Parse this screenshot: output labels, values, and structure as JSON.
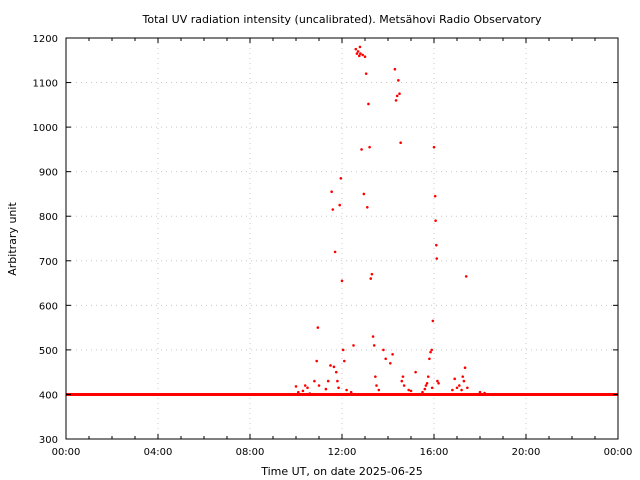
{
  "chart_data": {
    "type": "scatter",
    "title": "Total UV radiation intensity (uncalibrated). Metsähovi Radio Observatory",
    "xlabel": "Time UT, on date 2025-06-25",
    "ylabel": "Arbitrary unit",
    "xlim": [
      0,
      24
    ],
    "ylim": [
      300,
      1200
    ],
    "x_ticks": [
      0,
      4,
      8,
      12,
      16,
      20,
      24
    ],
    "x_tick_labels": [
      "00:00",
      "04:00",
      "08:00",
      "12:00",
      "16:00",
      "20:00",
      "00:00"
    ],
    "y_ticks": [
      300,
      400,
      500,
      600,
      700,
      800,
      900,
      1000,
      1100,
      1200
    ],
    "y_tick_labels": [
      "300",
      "400",
      "500",
      "600",
      "700",
      "800",
      "900",
      "1000",
      "1100",
      "1200"
    ],
    "grid": true,
    "point_color": "#ff0000",
    "baseline": {
      "x_range": [
        0,
        24
      ],
      "value": 400
    },
    "points": [
      [
        10.0,
        418
      ],
      [
        10.1,
        405
      ],
      [
        10.3,
        408
      ],
      [
        10.4,
        420
      ],
      [
        10.5,
        415
      ],
      [
        10.6,
        402
      ],
      [
        10.8,
        430
      ],
      [
        10.9,
        475
      ],
      [
        10.95,
        550
      ],
      [
        11.0,
        420
      ],
      [
        11.3,
        412
      ],
      [
        11.4,
        430
      ],
      [
        11.5,
        465
      ],
      [
        11.55,
        855
      ],
      [
        11.6,
        815
      ],
      [
        11.65,
        462
      ],
      [
        11.7,
        720
      ],
      [
        11.75,
        450
      ],
      [
        11.8,
        430
      ],
      [
        11.85,
        415
      ],
      [
        11.9,
        825
      ],
      [
        11.95,
        885
      ],
      [
        12.0,
        655
      ],
      [
        12.05,
        500
      ],
      [
        12.1,
        475
      ],
      [
        12.2,
        410
      ],
      [
        12.4,
        405
      ],
      [
        12.5,
        510
      ],
      [
        12.6,
        1175
      ],
      [
        12.65,
        1165
      ],
      [
        12.7,
        1170
      ],
      [
        12.75,
        1160
      ],
      [
        12.78,
        1180
      ],
      [
        12.8,
        1165
      ],
      [
        12.85,
        950
      ],
      [
        12.9,
        1162
      ],
      [
        12.95,
        850
      ],
      [
        13.0,
        1158
      ],
      [
        13.05,
        1120
      ],
      [
        13.1,
        820
      ],
      [
        13.15,
        1052
      ],
      [
        13.2,
        955
      ],
      [
        13.25,
        660
      ],
      [
        13.3,
        670
      ],
      [
        13.35,
        530
      ],
      [
        13.4,
        510
      ],
      [
        13.45,
        440
      ],
      [
        13.5,
        420
      ],
      [
        13.6,
        410
      ],
      [
        13.8,
        500
      ],
      [
        13.9,
        480
      ],
      [
        14.1,
        470
      ],
      [
        14.2,
        490
      ],
      [
        14.3,
        1130
      ],
      [
        14.35,
        1060
      ],
      [
        14.4,
        1070
      ],
      [
        14.45,
        1105
      ],
      [
        14.5,
        1075
      ],
      [
        14.55,
        965
      ],
      [
        14.6,
        430
      ],
      [
        14.65,
        440
      ],
      [
        14.7,
        420
      ],
      [
        14.9,
        410
      ],
      [
        15.0,
        408
      ],
      [
        15.2,
        450
      ],
      [
        15.5,
        405
      ],
      [
        15.6,
        412
      ],
      [
        15.65,
        420
      ],
      [
        15.7,
        425
      ],
      [
        15.75,
        440
      ],
      [
        15.8,
        480
      ],
      [
        15.85,
        495
      ],
      [
        15.9,
        500
      ],
      [
        15.92,
        415
      ],
      [
        15.95,
        565
      ],
      [
        16.0,
        955
      ],
      [
        16.05,
        845
      ],
      [
        16.07,
        790
      ],
      [
        16.1,
        735
      ],
      [
        16.12,
        705
      ],
      [
        16.15,
        430
      ],
      [
        16.2,
        425
      ],
      [
        16.8,
        410
      ],
      [
        16.9,
        435
      ],
      [
        17.0,
        415
      ],
      [
        17.1,
        420
      ],
      [
        17.2,
        410
      ],
      [
        17.25,
        440
      ],
      [
        17.3,
        430
      ],
      [
        17.35,
        460
      ],
      [
        17.4,
        665
      ],
      [
        17.45,
        415
      ],
      [
        18.0,
        405
      ],
      [
        18.2,
        403
      ]
    ]
  }
}
